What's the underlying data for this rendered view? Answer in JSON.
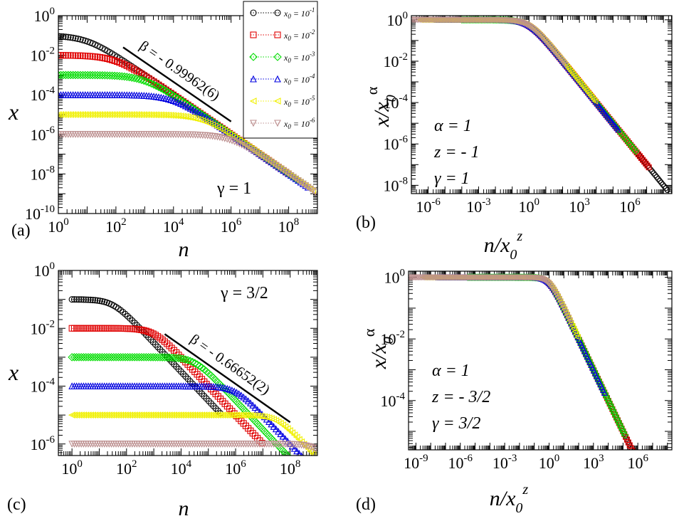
{
  "figure": {
    "legend_entries": [
      {
        "label_base": "x",
        "label_sub": "0",
        "label_eq": " = 10",
        "label_exp": "-1",
        "color": "#000000",
        "marker": "circle"
      },
      {
        "label_base": "x",
        "label_sub": "0",
        "label_eq": " = 10",
        "label_exp": "-2",
        "color": "#e00000",
        "marker": "square"
      },
      {
        "label_base": "x",
        "label_sub": "0",
        "label_eq": " = 10",
        "label_exp": "-3",
        "color": "#00dd00",
        "marker": "diamond"
      },
      {
        "label_base": "x",
        "label_sub": "0",
        "label_eq": " = 10",
        "label_exp": "-4",
        "color": "#0000e0",
        "marker": "triangle-up"
      },
      {
        "label_base": "x",
        "label_sub": "0",
        "label_eq": " = 10",
        "label_exp": "-5",
        "color": "#f0f000",
        "marker": "triangle-left"
      },
      {
        "label_base": "x",
        "label_sub": "0",
        "label_eq": " = 10",
        "label_exp": "-6",
        "color": "#bc8f8f",
        "marker": "triangle-down"
      }
    ]
  },
  "chart_data": [
    {
      "id": "a",
      "type": "scatter",
      "panel_label": "(a)",
      "xscale": "log",
      "yscale": "log",
      "xlim_exp": [
        0,
        9
      ],
      "ylim_exp": [
        -10,
        0
      ],
      "xticks_exp": [
        0,
        2,
        4,
        6,
        8
      ],
      "yticks_exp": [
        -10,
        -8,
        -6,
        -4,
        -2,
        0
      ],
      "xlabel": "n",
      "ylabel": "x",
      "gamma": 1,
      "annotations": [
        "γ  = 1"
      ],
      "fit_text": "β = - 0.99962(6)",
      "fit_line": {
        "x_exp": [
          2.25,
          6.0
        ],
        "y_exp": [
          -1.6,
          -5.35
        ]
      },
      "series": [
        {
          "x0_exp": -1,
          "n_max_exp": 7.5
        },
        {
          "x0_exp": -2,
          "n_max_exp": 8.0
        },
        {
          "x0_exp": -3,
          "n_max_exp": 8.4
        },
        {
          "x0_exp": -4,
          "n_max_exp": 8.7
        },
        {
          "x0_exp": -5,
          "n_max_exp": 8.9
        },
        {
          "x0_exp": -6,
          "n_max_exp": 9.0
        }
      ]
    },
    {
      "id": "b",
      "type": "scatter",
      "panel_label": "(b)",
      "xscale": "log",
      "yscale": "log",
      "xlim_exp": [
        -7,
        8.5
      ],
      "ylim_exp": [
        -8.4,
        0.2
      ],
      "xticks_exp": [
        -6,
        -3,
        0,
        3,
        6
      ],
      "yticks_exp": [
        -8,
        -6,
        -4,
        -2,
        0
      ],
      "xlabel_base": "n/x",
      "xlabel_sub": "0",
      "xlabel_sup": "z",
      "ylabel_base": "x/x",
      "ylabel_sub": "0",
      "ylabel_sup": "α",
      "annotations": [
        "α = 1",
        "z = - 1",
        "γ = 1"
      ],
      "alpha": 1,
      "z": -1,
      "gamma": 1
    },
    {
      "id": "c",
      "type": "scatter",
      "panel_label": "(c)",
      "xscale": "log",
      "yscale": "log",
      "xlim_exp": [
        -0.5,
        9
      ],
      "ylim_exp": [
        -6.4,
        0
      ],
      "xticks_exp": [
        0,
        2,
        4,
        6,
        8
      ],
      "yticks_exp": [
        -6,
        -4,
        -2,
        0
      ],
      "xlabel": "n",
      "ylabel": "x",
      "gamma": 1.5,
      "annotations": [
        "γ  = 3/2"
      ],
      "fit_text": "β = - 0.66652(2)",
      "fit_line": {
        "x_exp": [
          3.4,
          8.0
        ],
        "y_exp": [
          -2.2,
          -5.25
        ]
      },
      "series": [
        {
          "x0_exp": -1,
          "n_max_exp": 5.5
        },
        {
          "x0_exp": -2,
          "n_max_exp": 7.0
        },
        {
          "x0_exp": -3,
          "n_max_exp": 8.0
        },
        {
          "x0_exp": -4,
          "n_max_exp": 8.6
        },
        {
          "x0_exp": -5,
          "n_max_exp": 8.9
        },
        {
          "x0_exp": -6,
          "n_max_exp": 9.0
        }
      ]
    },
    {
      "id": "d",
      "type": "scatter",
      "panel_label": "(d)",
      "xscale": "log",
      "yscale": "log",
      "xlim_exp": [
        -9.5,
        8.3
      ],
      "ylim_exp": [
        -5.6,
        0.2
      ],
      "xticks_exp": [
        -9,
        -6,
        -3,
        0,
        3,
        6
      ],
      "yticks_exp": [
        -4,
        -2,
        0
      ],
      "xlabel_base": "n/x",
      "xlabel_sub": "0",
      "xlabel_sup": "z",
      "ylabel_base": "x/x",
      "ylabel_sub": "0",
      "ylabel_sup": "α",
      "annotations": [
        "α = 1",
        "z = - 3/2",
        "γ = 3/2"
      ],
      "alpha": 1,
      "z": -1.5,
      "gamma": 1.5
    }
  ]
}
